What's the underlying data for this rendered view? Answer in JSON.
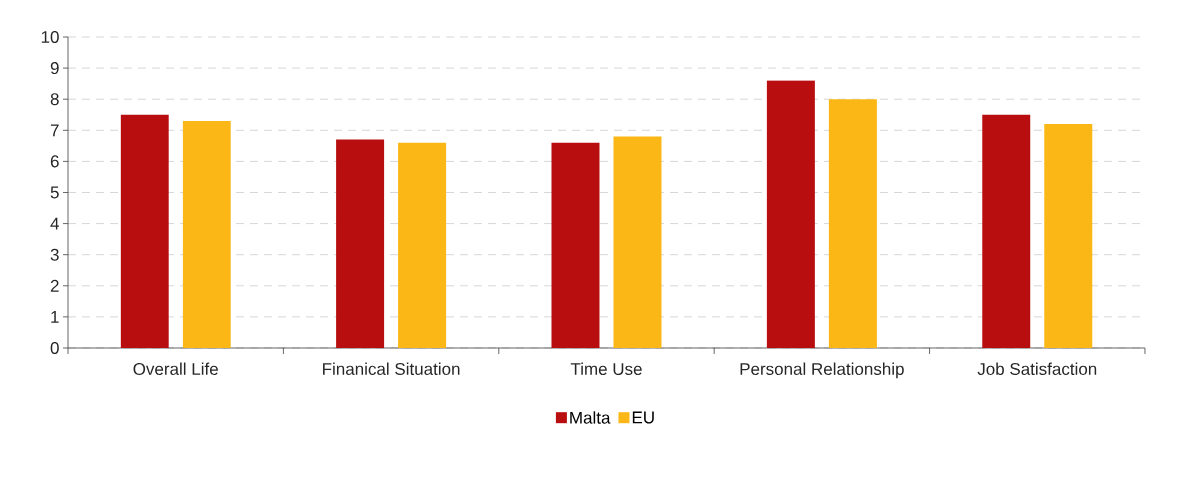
{
  "chart_data": {
    "type": "bar",
    "categories": [
      "Overall Life",
      "Finanical Situation",
      "Time Use",
      "Personal Relationship",
      "Job Satisfaction"
    ],
    "series": [
      {
        "name": "Malta",
        "color": "#b90e10",
        "values": [
          7.5,
          6.7,
          6.6,
          8.6,
          7.5
        ]
      },
      {
        "name": "EU",
        "color": "#fbb715",
        "values": [
          7.3,
          6.6,
          6.8,
          8.0,
          7.2
        ]
      }
    ],
    "ylim": [
      0,
      10
    ],
    "yticks": [
      0,
      1,
      2,
      3,
      4,
      5,
      6,
      7,
      8,
      9,
      10
    ],
    "grid": "y",
    "legend": "bottom"
  }
}
